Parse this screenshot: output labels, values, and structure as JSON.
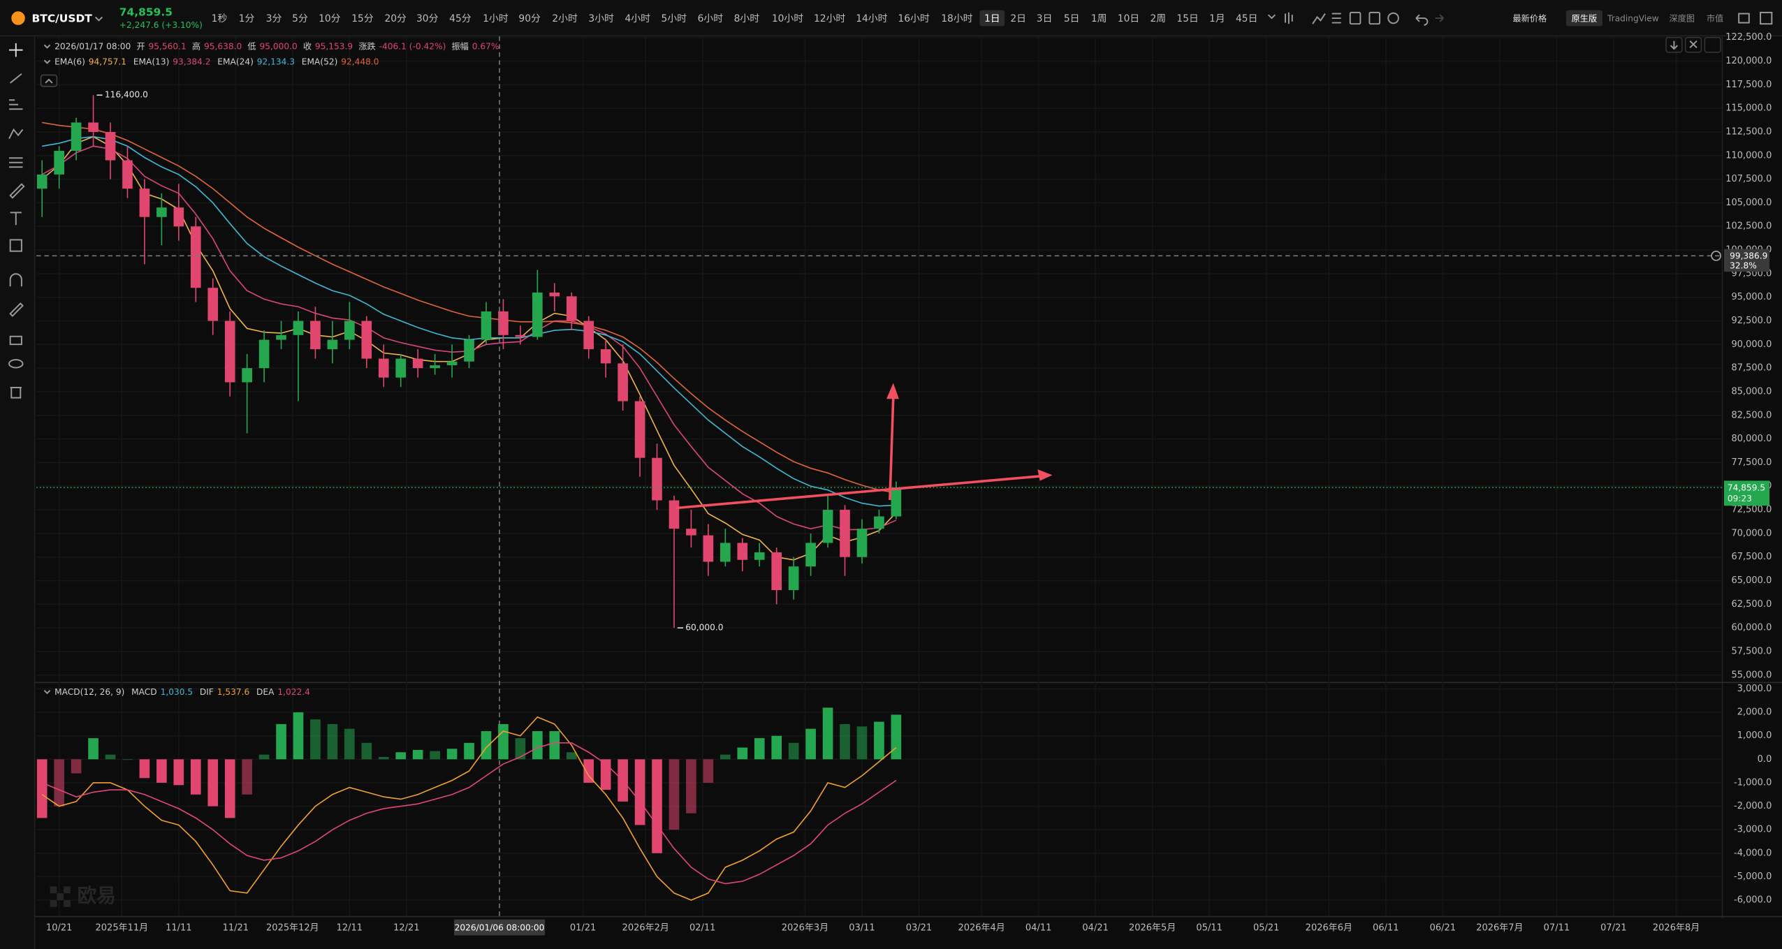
{
  "header": {
    "pair": "BTC/USDT",
    "price": "74,859.5",
    "change": "+2,247.6 (+3.10%)",
    "timeframes": [
      "1秒",
      "1分",
      "3分",
      "5分",
      "10分",
      "15分",
      "20分",
      "30分",
      "45分",
      "1小时",
      "90分",
      "2小时",
      "3小时",
      "4小时",
      "5小时",
      "6小时",
      "8小时",
      "10小时",
      "12小时",
      "14小时",
      "16小时",
      "18小时",
      "1日",
      "2日",
      "3日",
      "5日",
      "1周",
      "10日",
      "2周",
      "15日",
      "1月",
      "45日"
    ],
    "active": "1日",
    "views": [
      "最新价格",
      "原生版",
      "TradingView",
      "深度图",
      "市值"
    ],
    "active_view": "原生版"
  },
  "ohlc_readout": {
    "date": "2026/01/17 08:00",
    "items": [
      {
        "label": "开",
        "value": "95,560.1"
      },
      {
        "label": "高",
        "value": "95,638.0"
      },
      {
        "label": "低",
        "value": "95,000.0"
      },
      {
        "label": "收",
        "value": "95,153.9"
      },
      {
        "label": "涨跌",
        "value": "-406.1 (-0.42%)"
      },
      {
        "label": "振幅",
        "value": "0.67%"
      }
    ]
  },
  "watermark": "欧易",
  "chart_data": [
    {
      "type": "candlestick",
      "up_color": "#25a750",
      "down_color": "#e0466e",
      "x": [
        "2025-10-18",
        "2025-10-21",
        "2025-10-24",
        "2025-10-27",
        "2025-10-30",
        "2025-11-02",
        "2025-11-05",
        "2025-11-08",
        "2025-11-11",
        "2025-11-14",
        "2025-11-17",
        "2025-11-20",
        "2025-11-23",
        "2025-11-26",
        "2025-11-29",
        "2025-12-02",
        "2025-12-05",
        "2025-12-08",
        "2025-12-11",
        "2025-12-14",
        "2025-12-17",
        "2025-12-20",
        "2025-12-23",
        "2025-12-26",
        "2025-12-29",
        "2026-01-01",
        "2026-01-04",
        "2026-01-07",
        "2026-01-10",
        "2026-01-13",
        "2026-01-16",
        "2026-01-19",
        "2026-01-22",
        "2026-01-25",
        "2026-01-28",
        "2026-01-31",
        "2026-02-03",
        "2026-02-06",
        "2026-02-09",
        "2026-02-12",
        "2026-02-15",
        "2026-02-18",
        "2026-02-21",
        "2026-02-24",
        "2026-02-27",
        "2026-03-02",
        "2026-03-05",
        "2026-03-08",
        "2026-03-11",
        "2026-03-14",
        "2026-03-17"
      ],
      "open": [
        106500,
        108000,
        110500,
        113500,
        112500,
        109500,
        106500,
        103500,
        104500,
        102500,
        96000,
        92500,
        86000,
        87500,
        90500,
        91000,
        92500,
        89500,
        90500,
        92500,
        88500,
        86500,
        88500,
        87500,
        87800,
        88200,
        90500,
        93500,
        91000,
        90800,
        95500,
        95100,
        92500,
        89500,
        88000,
        84000,
        78000,
        73500,
        70500,
        69800,
        67000,
        69000,
        67200,
        68000,
        64000,
        66500,
        69000,
        72500,
        67500,
        70500,
        71800
      ],
      "high": [
        109500,
        111000,
        114000,
        116400,
        113500,
        111000,
        107500,
        106000,
        107000,
        103500,
        97000,
        93500,
        89000,
        91500,
        92500,
        93500,
        94000,
        92500,
        94500,
        93000,
        90000,
        89000,
        89500,
        89000,
        90000,
        91000,
        94500,
        94800,
        92000,
        97900,
        96500,
        95500,
        93000,
        90500,
        90000,
        84500,
        79500,
        74000,
        72500,
        71000,
        70500,
        69500,
        69000,
        68500,
        67500,
        70000,
        74000,
        73000,
        71500,
        72500,
        75500
      ],
      "low": [
        103500,
        106500,
        109500,
        111000,
        107500,
        105500,
        98500,
        100500,
        101000,
        94500,
        91000,
        84500,
        80600,
        86000,
        89500,
        84000,
        88500,
        88000,
        89500,
        87500,
        85500,
        85500,
        86500,
        86800,
        86500,
        87500,
        90000,
        89500,
        90000,
        90500,
        93500,
        91500,
        88500,
        86500,
        83000,
        76000,
        72500,
        60000,
        68500,
        65500,
        66500,
        66000,
        66500,
        62500,
        63000,
        65500,
        68500,
        65500,
        66800,
        70000,
        71500
      ],
      "close": [
        108000,
        110500,
        113500,
        112500,
        109500,
        106500,
        103500,
        104500,
        102500,
        96000,
        92500,
        86000,
        87500,
        90500,
        91000,
        92500,
        89500,
        90500,
        92500,
        88500,
        86500,
        88500,
        87500,
        87800,
        88200,
        90500,
        93500,
        91000,
        90800,
        95500,
        95100,
        92500,
        89500,
        88000,
        84000,
        78000,
        73500,
        70500,
        69800,
        67000,
        69000,
        67200,
        68000,
        64000,
        66500,
        69000,
        72500,
        67500,
        70500,
        71800,
        74859.5
      ],
      "series": [
        {
          "name": "EMA(6)",
          "color": "#f0b24a",
          "readout": "94,757.1",
          "values": [
            107500,
            109000,
            111300,
            112000,
            111000,
            109000,
            106000,
            105400,
            104300,
            100600,
            97800,
            93800,
            91700,
            91300,
            91200,
            91700,
            91000,
            90800,
            91400,
            90400,
            89100,
            88900,
            88400,
            88200,
            88200,
            89000,
            90500,
            90700,
            90700,
            92300,
            93300,
            93000,
            91800,
            90500,
            88300,
            84700,
            80900,
            77200,
            74700,
            72100,
            71100,
            69900,
            69300,
            67500,
            67200,
            67900,
            69800,
            69100,
            69600,
            70300,
            72200
          ]
        },
        {
          "name": "EMA(13)",
          "color": "#d9467a",
          "readout": "93,384.2",
          "values": [
            108000,
            109000,
            110300,
            111000,
            110700,
            109700,
            107800,
            106800,
            106000,
            103800,
            101200,
            97800,
            95700,
            94800,
            94300,
            94000,
            93300,
            92800,
            92600,
            91800,
            90700,
            90200,
            89800,
            89400,
            89200,
            89300,
            90000,
            90200,
            90300,
            91500,
            92500,
            92500,
            91900,
            91100,
            89800,
            87500,
            84500,
            81500,
            79200,
            77000,
            75600,
            74200,
            73200,
            71800,
            71000,
            70500,
            70900,
            70400,
            70400,
            70600,
            71400
          ]
        },
        {
          "name": "EMA(24)",
          "color": "#3fb8d4",
          "readout": "92,134.3",
          "values": [
            111000,
            111300,
            111800,
            112000,
            111700,
            111000,
            109800,
            108800,
            108000,
            106700,
            105000,
            102800,
            100700,
            99300,
            98300,
            97400,
            96500,
            95700,
            95200,
            94300,
            93200,
            92500,
            91800,
            91200,
            90700,
            90500,
            90700,
            90700,
            90700,
            91100,
            91500,
            91600,
            91400,
            91000,
            90300,
            89000,
            87200,
            85400,
            83700,
            82000,
            80600,
            79200,
            78100,
            76900,
            75800,
            75000,
            74600,
            73800,
            73200,
            72900,
            73000
          ]
        },
        {
          "name": "EMA(52)",
          "color": "#e0643a",
          "readout": "92,448.0",
          "values": [
            113500,
            113200,
            113000,
            112800,
            112300,
            111600,
            110700,
            109800,
            108900,
            107800,
            106500,
            105000,
            103500,
            102300,
            101300,
            100300,
            99400,
            98500,
            97700,
            96900,
            96100,
            95400,
            94700,
            94100,
            93500,
            93000,
            92800,
            92600,
            92400,
            92400,
            92450,
            92300,
            92000,
            91500,
            90800,
            89600,
            88100,
            86400,
            84800,
            83300,
            82000,
            80800,
            79700,
            78600,
            77600,
            76900,
            76400,
            75700,
            75100,
            74600,
            74300
          ]
        }
      ],
      "xlim": [
        "2025-10-17",
        "2026-08-09"
      ],
      "xticks": [
        {
          "value": "2025-10-21",
          "label": "10/21"
        },
        {
          "value": "2025-11-01",
          "label": "2025年11月"
        },
        {
          "value": "2025-11-11",
          "label": "11/11"
        },
        {
          "value": "2025-11-21",
          "label": "11/21"
        },
        {
          "value": "2025-12-01",
          "label": "2025年12月"
        },
        {
          "value": "2025-12-11",
          "label": "12/11"
        },
        {
          "value": "2025-12-21",
          "label": "12/21"
        },
        {
          "value": "2026-01-21",
          "label": "01/21"
        },
        {
          "value": "2026-02-01",
          "label": "2026年2月"
        },
        {
          "value": "2026-02-11",
          "label": "02/11"
        },
        {
          "value": "2026-03-01",
          "label": "2026年3月"
        },
        {
          "value": "2026-03-11",
          "label": "03/11"
        },
        {
          "value": "2026-03-21",
          "label": "03/21"
        },
        {
          "value": "2026-04-01",
          "label": "2026年4月"
        },
        {
          "value": "2026-04-11",
          "label": "04/11"
        },
        {
          "value": "2026-04-21",
          "label": "04/21"
        },
        {
          "value": "2026-05-01",
          "label": "2026年5月"
        },
        {
          "value": "2026-05-11",
          "label": "05/11"
        },
        {
          "value": "2026-05-21",
          "label": "05/21"
        },
        {
          "value": "2026-06-01",
          "label": "2026年6月"
        },
        {
          "value": "2026-06-11",
          "label": "06/11"
        },
        {
          "value": "2026-06-21",
          "label": "06/21"
        },
        {
          "value": "2026-07-01",
          "label": "2026年7月"
        },
        {
          "value": "2026-07-11",
          "label": "07/11"
        },
        {
          "value": "2026-07-21",
          "label": "07/21"
        },
        {
          "value": "2026-08-01",
          "label": "2026年8月"
        }
      ],
      "ylim": [
        54280,
        122620
      ],
      "yticks": [
        {
          "value": 55000,
          "label": "55,000.0"
        },
        {
          "value": 57500,
          "label": "57,500.0"
        },
        {
          "value": 60000,
          "label": "60,000.0"
        },
        {
          "value": 62500,
          "label": "62,500.0"
        },
        {
          "value": 65000,
          "label": "65,000.0"
        },
        {
          "value": 67500,
          "label": "67,500.0"
        },
        {
          "value": 70000,
          "label": "70,000.0"
        },
        {
          "value": 72500,
          "label": "72,500.0"
        },
        {
          "value": 75000,
          "label": "75,000.0"
        },
        {
          "value": 77500,
          "label": "77,500.0"
        },
        {
          "value": 80000,
          "label": "80,000.0"
        },
        {
          "value": 82500,
          "label": "82,500.0"
        },
        {
          "value": 85000,
          "label": "85,000.0"
        },
        {
          "value": 87500,
          "label": "87,500.0"
        },
        {
          "value": 90000,
          "label": "90,000.0"
        },
        {
          "value": 92500,
          "label": "92,500.0"
        },
        {
          "value": 95000,
          "label": "95,000.0"
        },
        {
          "value": 97500,
          "label": "97,500.0"
        },
        {
          "value": 100000,
          "label": "100,000.0"
        },
        {
          "value": 102500,
          "label": "102,500.0"
        },
        {
          "value": 105000,
          "label": "105,000.0"
        },
        {
          "value": 107500,
          "label": "107,500.0"
        },
        {
          "value": 110000,
          "label": "110,000.0"
        },
        {
          "value": 112500,
          "label": "112,500.0"
        },
        {
          "value": 115000,
          "label": "115,000.0"
        },
        {
          "value": 117500,
          "label": "117,500.0"
        },
        {
          "value": 120000,
          "label": "120,000.0"
        },
        {
          "value": 122500,
          "label": "122,500.0"
        }
      ],
      "annotations": [
        {
          "x": "2025-10-27",
          "value": 116400,
          "label": "116,400.0"
        },
        {
          "x": "2026-02-06",
          "value": 60000,
          "label": "60,000.0"
        }
      ],
      "last_price": {
        "value": 74859.5,
        "label": "74,859.5",
        "time": "09:23",
        "color": "#25a750"
      },
      "crosshair": {
        "x": {
          "value": "2026-01-06T08:00",
          "label": "2026/01/06 08:00:00"
        },
        "y": {
          "value": 99386.9,
          "label": "99,386.9"
        },
        "percent": "32.8%"
      }
    },
    {
      "type": "macd",
      "title": "MACD(12, 26, 9)",
      "up_color": "#25a750",
      "down_color": "#e0466e",
      "series": [
        {
          "name": "MACD",
          "color": "#3fb8d4",
          "readout": "1,030.5",
          "values": [
            -2500,
            -2000,
            -600,
            900,
            200,
            0,
            -800,
            -1000,
            -1100,
            -1500,
            -2000,
            -2500,
            -1500,
            200,
            1500,
            2000,
            1700,
            1500,
            1300,
            700,
            100,
            300,
            400,
            350,
            450,
            700,
            1200,
            1500,
            900,
            1200,
            1200,
            300,
            -1000,
            -1300,
            -1800,
            -2800,
            -4000,
            -3000,
            -2300,
            -1000,
            200,
            500,
            900,
            1000,
            700,
            1300,
            2200,
            1500,
            1400,
            1600,
            1900
          ]
        },
        {
          "name": "DIF",
          "color": "#f0a030",
          "readout": "1,537.6",
          "values": [
            -1500,
            -2000,
            -1800,
            -1000,
            -1000,
            -1300,
            -2000,
            -2600,
            -2800,
            -3500,
            -4500,
            -5600,
            -5700,
            -4700,
            -3700,
            -2800,
            -2000,
            -1500,
            -1200,
            -1400,
            -1600,
            -1700,
            -1500,
            -1200,
            -900,
            -500,
            500,
            1200,
            1000,
            1800,
            1500,
            600,
            -700,
            -1500,
            -2500,
            -3800,
            -5000,
            -5700,
            -6000,
            -5700,
            -4600,
            -4300,
            -3900,
            -3400,
            -3100,
            -2200,
            -1000,
            -1200,
            -700,
            -100,
            500
          ]
        },
        {
          "name": "DEA",
          "color": "#e0467a",
          "readout": "1,022.4",
          "values": [
            -1000,
            -1300,
            -1600,
            -1400,
            -1300,
            -1300,
            -1500,
            -1800,
            -2100,
            -2500,
            -3000,
            -3600,
            -4100,
            -4300,
            -4200,
            -3900,
            -3500,
            -3000,
            -2600,
            -2300,
            -2100,
            -2000,
            -1900,
            -1700,
            -1500,
            -1200,
            -700,
            -200,
            100,
            500,
            700,
            700,
            300,
            -200,
            -900,
            -1800,
            -2800,
            -3800,
            -4600,
            -5100,
            -5300,
            -5200,
            -4900,
            -4500,
            -4100,
            -3600,
            -2800,
            -2300,
            -1900,
            -1400,
            -900
          ]
        }
      ],
      "ylim": [
        -6630,
        3200
      ],
      "yticks": [
        {
          "value": 3000,
          "label": "3,000.0"
        },
        {
          "value": 2000,
          "label": "2,000.0"
        },
        {
          "value": 1000,
          "label": "1,000.0"
        },
        {
          "value": 0,
          "label": "0.0"
        },
        {
          "value": -1000,
          "label": "-1,000.0"
        },
        {
          "value": -2000,
          "label": "-2,000.0"
        },
        {
          "value": -3000,
          "label": "-3,000.0"
        },
        {
          "value": -4000,
          "label": "-4,000.0"
        },
        {
          "value": -5000,
          "label": "-5,000.0"
        },
        {
          "value": -6000,
          "label": "-6,000.0"
        }
      ]
    }
  ]
}
